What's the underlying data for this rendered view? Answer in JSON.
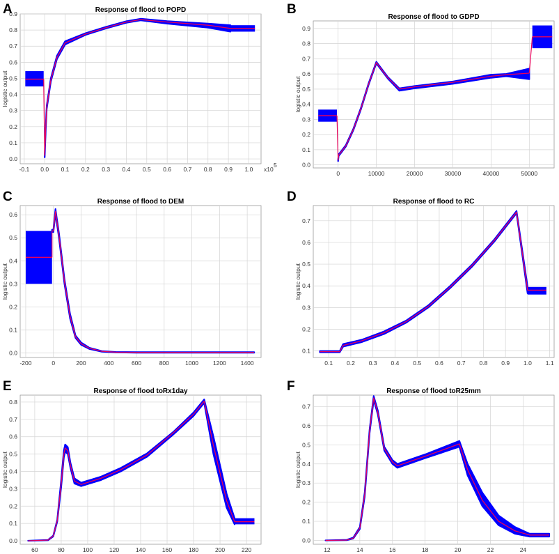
{
  "figure": {
    "colors": {
      "band": "#0000ff",
      "median": "#e8005a",
      "grid": "#d4d4d4",
      "frame": "#9a9a9a"
    }
  },
  "chart_data": [
    {
      "panel": "A",
      "type": "line",
      "title": "Response of flood to POPD",
      "ylabel": "logistic output",
      "xlabel": "",
      "x_multiplier_label": "x10",
      "x_multiplier_exp": "5",
      "xlim": [
        -0.12,
        1.06
      ],
      "ylim": [
        -0.03,
        0.9
      ],
      "xticks": [
        -0.1,
        0,
        0.1,
        0.2,
        0.3,
        0.4,
        0.5,
        0.6,
        0.7,
        0.8,
        0.9,
        1.0
      ],
      "xtick_labels": [
        "-0.1",
        "0.0",
        "0.1",
        "0.2",
        "0.3",
        "0.4",
        "0.5",
        "0.6",
        "0.7",
        "0.8",
        "0.9",
        "1.0"
      ],
      "yticks": [
        0,
        0.1,
        0.2,
        0.3,
        0.4,
        0.5,
        0.6,
        0.7,
        0.8,
        0.9
      ],
      "ytick_labels": [
        "0.0",
        "0.1",
        "0.2",
        "0.3",
        "0.4",
        "0.5",
        "0.6",
        "0.7",
        "0.8",
        "0.9"
      ],
      "categorical_box": {
        "x_range": [
          -0.095,
          -0.005
        ],
        "mean": 0.495,
        "low": 0.45,
        "high": 0.545
      },
      "right_box": {
        "x_range": [
          0.91,
          1.03
        ],
        "mean": 0.81,
        "low": 0.79,
        "high": 0.83
      },
      "series": [
        {
          "name": "upper",
          "x": [
            0.0,
            0.005,
            0.01,
            0.03,
            0.06,
            0.1,
            0.2,
            0.3,
            0.4,
            0.47,
            0.6,
            0.8,
            0.91
          ],
          "values": [
            0.03,
            0.2,
            0.33,
            0.5,
            0.64,
            0.73,
            0.78,
            0.82,
            0.855,
            0.87,
            0.855,
            0.84,
            0.83
          ]
        },
        {
          "name": "mean",
          "x": [
            0.0,
            0.005,
            0.01,
            0.03,
            0.06,
            0.1,
            0.2,
            0.3,
            0.4,
            0.47,
            0.6,
            0.8,
            0.91
          ],
          "values": [
            0.02,
            0.19,
            0.32,
            0.49,
            0.63,
            0.72,
            0.775,
            0.815,
            0.85,
            0.865,
            0.85,
            0.83,
            0.81
          ]
        },
        {
          "name": "lower",
          "x": [
            0.0,
            0.005,
            0.01,
            0.03,
            0.06,
            0.1,
            0.2,
            0.3,
            0.4,
            0.47,
            0.6,
            0.8,
            0.91
          ],
          "values": [
            0.01,
            0.18,
            0.31,
            0.48,
            0.62,
            0.71,
            0.77,
            0.81,
            0.845,
            0.86,
            0.84,
            0.815,
            0.79
          ]
        }
      ]
    },
    {
      "panel": "B",
      "type": "line",
      "title": "Response of flood to GDPD",
      "ylabel": "logistic output",
      "xlabel": "",
      "xlim": [
        -6500,
        56500
      ],
      "ylim": [
        -0.02,
        0.95
      ],
      "xticks": [
        0,
        10000,
        20000,
        30000,
        40000,
        50000
      ],
      "xtick_labels": [
        "0",
        "10000",
        "20000",
        "30000",
        "40000",
        "50000"
      ],
      "yticks": [
        0,
        0.1,
        0.2,
        0.3,
        0.4,
        0.5,
        0.6,
        0.7,
        0.8,
        0.9
      ],
      "ytick_labels": [
        "0.0",
        "0.1",
        "0.2",
        "0.3",
        "0.4",
        "0.5",
        "0.6",
        "0.7",
        "0.8",
        "0.9"
      ],
      "categorical_box": {
        "x_range": [
          -5200,
          -300
        ],
        "mean": 0.325,
        "low": 0.285,
        "high": 0.365
      },
      "right_box": {
        "x_range": [
          50800,
          56000
        ],
        "mean": 0.845,
        "low": 0.77,
        "high": 0.92
      },
      "series": [
        {
          "name": "upper",
          "x": [
            0,
            150,
            500,
            2000,
            4000,
            6000,
            8000,
            10000,
            13000,
            16000,
            20000,
            30000,
            40000,
            44000,
            50000
          ],
          "values": [
            0.035,
            0.07,
            0.08,
            0.13,
            0.24,
            0.38,
            0.54,
            0.68,
            0.58,
            0.505,
            0.52,
            0.55,
            0.595,
            0.6,
            0.635
          ]
        },
        {
          "name": "mean",
          "x": [
            0,
            150,
            500,
            2000,
            4000,
            6000,
            8000,
            10000,
            13000,
            16000,
            20000,
            30000,
            40000,
            44000,
            50000
          ],
          "values": [
            0.03,
            0.065,
            0.075,
            0.125,
            0.235,
            0.375,
            0.535,
            0.675,
            0.575,
            0.5,
            0.515,
            0.545,
            0.585,
            0.595,
            0.605
          ]
        },
        {
          "name": "lower",
          "x": [
            0,
            150,
            500,
            2000,
            4000,
            6000,
            8000,
            10000,
            13000,
            16000,
            20000,
            30000,
            40000,
            44000,
            50000
          ],
          "values": [
            0.025,
            0.06,
            0.07,
            0.12,
            0.23,
            0.37,
            0.53,
            0.67,
            0.57,
            0.49,
            0.505,
            0.535,
            0.575,
            0.585,
            0.565
          ]
        }
      ]
    },
    {
      "panel": "C",
      "type": "line",
      "title": "Response of flood to DEM",
      "ylabel": "logistic output",
      "xlabel": "",
      "xlim": [
        -240,
        1500
      ],
      "ylim": [
        -0.02,
        0.64
      ],
      "xticks": [
        -200,
        0,
        200,
        400,
        600,
        800,
        1000,
        1200,
        1400
      ],
      "xtick_labels": [
        "-200",
        "0",
        "200",
        "400",
        "600",
        "800",
        "1000",
        "1200",
        "1400"
      ],
      "yticks": [
        0,
        0.1,
        0.2,
        0.3,
        0.4,
        0.5,
        0.6
      ],
      "ytick_labels": [
        "0.0",
        "0.1",
        "0.2",
        "0.3",
        "0.4",
        "0.5",
        "0.6"
      ],
      "categorical_box": {
        "x_range": [
          -200,
          -10
        ],
        "mean": 0.415,
        "low": 0.3,
        "high": 0.53
      },
      "series": [
        {
          "name": "upper",
          "x": [
            -10,
            0,
            15,
            40,
            80,
            120,
            160,
            200,
            260,
            350,
            450,
            600,
            1000,
            1450
          ],
          "values": [
            0.535,
            0.535,
            0.625,
            0.52,
            0.32,
            0.17,
            0.075,
            0.045,
            0.022,
            0.008,
            0.004,
            0.003,
            0.003,
            0.003
          ]
        },
        {
          "name": "mean",
          "x": [
            -10,
            0,
            15,
            40,
            80,
            120,
            160,
            200,
            260,
            350,
            450,
            600,
            1000,
            1450
          ],
          "values": [
            0.53,
            0.53,
            0.615,
            0.51,
            0.31,
            0.16,
            0.07,
            0.04,
            0.02,
            0.007,
            0.003,
            0.002,
            0.002,
            0.002
          ]
        },
        {
          "name": "lower",
          "x": [
            -10,
            0,
            15,
            40,
            80,
            120,
            160,
            200,
            260,
            350,
            450,
            600,
            1000,
            1450
          ],
          "values": [
            0.525,
            0.525,
            0.605,
            0.5,
            0.3,
            0.15,
            0.065,
            0.035,
            0.017,
            0.005,
            0.002,
            0.001,
            0.001,
            0.001
          ]
        }
      ]
    },
    {
      "panel": "D",
      "type": "line",
      "title": "Response of flood to RC",
      "ylabel": "logistic output",
      "xlabel": "",
      "xlim": [
        0.03,
        1.12
      ],
      "ylim": [
        0.07,
        0.77
      ],
      "xticks": [
        0.1,
        0.2,
        0.3,
        0.4,
        0.5,
        0.6,
        0.7,
        0.8,
        0.9,
        1.0,
        1.1
      ],
      "xtick_labels": [
        "0.1",
        "0.2",
        "0.3",
        "0.4",
        "0.5",
        "0.6",
        "0.7",
        "0.8",
        "0.9",
        "1.0",
        "1.1"
      ],
      "yticks": [
        0.1,
        0.2,
        0.3,
        0.4,
        0.5,
        0.6,
        0.7
      ],
      "ytick_labels": [
        "0.1",
        "0.2",
        "0.3",
        "0.4",
        "0.5",
        "0.6",
        "0.7"
      ],
      "right_box": {
        "x_range": [
          1.0,
          1.085
        ],
        "mean": 0.38,
        "low": 0.36,
        "high": 0.395
      },
      "series": [
        {
          "name": "upper",
          "x": [
            0.06,
            0.15,
            0.165,
            0.25,
            0.35,
            0.45,
            0.55,
            0.65,
            0.75,
            0.85,
            0.95,
            1.0
          ],
          "values": [
            0.1,
            0.1,
            0.132,
            0.152,
            0.19,
            0.24,
            0.31,
            0.4,
            0.5,
            0.615,
            0.745,
            0.395
          ]
        },
        {
          "name": "mean",
          "x": [
            0.06,
            0.15,
            0.165,
            0.25,
            0.35,
            0.45,
            0.55,
            0.65,
            0.75,
            0.85,
            0.95,
            1.0
          ],
          "values": [
            0.097,
            0.097,
            0.126,
            0.147,
            0.184,
            0.235,
            0.305,
            0.395,
            0.495,
            0.61,
            0.74,
            0.38
          ]
        },
        {
          "name": "lower",
          "x": [
            0.06,
            0.15,
            0.165,
            0.25,
            0.35,
            0.45,
            0.55,
            0.65,
            0.75,
            0.85,
            0.95,
            1.0
          ],
          "values": [
            0.094,
            0.094,
            0.12,
            0.141,
            0.178,
            0.23,
            0.3,
            0.39,
            0.49,
            0.605,
            0.735,
            0.365
          ]
        }
      ]
    },
    {
      "panel": "E",
      "type": "line",
      "title": "Response of flood toRx1day",
      "ylabel": "logistic output",
      "xlabel": "",
      "xlim": [
        49,
        231
      ],
      "ylim": [
        -0.02,
        0.84
      ],
      "xticks": [
        60,
        80,
        100,
        120,
        140,
        160,
        180,
        200,
        220
      ],
      "xtick_labels": [
        "60",
        "80",
        "100",
        "120",
        "140",
        "160",
        "180",
        "200",
        "220"
      ],
      "yticks": [
        0,
        0.1,
        0.2,
        0.3,
        0.4,
        0.5,
        0.6,
        0.7,
        0.8
      ],
      "ytick_labels": [
        "0.0",
        "0.1",
        "0.2",
        "0.3",
        "0.4",
        "0.5",
        "0.6",
        "0.7",
        "0.8"
      ],
      "right_box": {
        "x_range": [
          211,
          226
        ],
        "mean": 0.11,
        "low": 0.095,
        "high": 0.13
      },
      "series": [
        {
          "name": "upper",
          "x": [
            55,
            70,
            74,
            77,
            80,
            82,
            83,
            85,
            87,
            90,
            95,
            110,
            125,
            145,
            165,
            180,
            188,
            195,
            205,
            211
          ],
          "values": [
            0.0,
            0.005,
            0.03,
            0.12,
            0.35,
            0.52,
            0.555,
            0.54,
            0.45,
            0.36,
            0.335,
            0.37,
            0.42,
            0.505,
            0.63,
            0.74,
            0.815,
            0.6,
            0.27,
            0.13
          ]
        },
        {
          "name": "mean",
          "x": [
            55,
            70,
            74,
            77,
            80,
            82,
            83,
            85,
            87,
            90,
            95,
            110,
            125,
            145,
            165,
            180,
            188,
            195,
            205,
            211
          ],
          "values": [
            0.0,
            0.004,
            0.028,
            0.115,
            0.33,
            0.5,
            0.535,
            0.52,
            0.435,
            0.345,
            0.325,
            0.36,
            0.41,
            0.495,
            0.625,
            0.73,
            0.805,
            0.55,
            0.23,
            0.11
          ]
        },
        {
          "name": "lower",
          "x": [
            55,
            70,
            74,
            77,
            80,
            82,
            83,
            85,
            87,
            90,
            95,
            110,
            125,
            145,
            165,
            180,
            188,
            195,
            205,
            211
          ],
          "values": [
            0.0,
            0.003,
            0.025,
            0.11,
            0.31,
            0.48,
            0.515,
            0.5,
            0.42,
            0.33,
            0.315,
            0.35,
            0.4,
            0.485,
            0.615,
            0.72,
            0.795,
            0.5,
            0.19,
            0.095
          ]
        }
      ]
    },
    {
      "panel": "F",
      "type": "line",
      "title": "Response of flood toR25mm",
      "ylabel": "logistic output",
      "xlabel": "",
      "xlim": [
        11.15,
        25.9
      ],
      "ylim": [
        -0.02,
        0.76
      ],
      "xticks": [
        12,
        14,
        16,
        18,
        20,
        22,
        24
      ],
      "xtick_labels": [
        "12",
        "14",
        "16",
        "18",
        "20",
        "22",
        "24"
      ],
      "yticks": [
        0,
        0.1,
        0.2,
        0.3,
        0.4,
        0.5,
        0.6,
        0.7
      ],
      "ytick_labels": [
        "0.0",
        "0.1",
        "0.2",
        "0.3",
        "0.4",
        "0.5",
        "0.6",
        "0.7"
      ],
      "series": [
        {
          "name": "upper",
          "x": [
            11.9,
            13.2,
            13.6,
            14.0,
            14.3,
            14.6,
            14.85,
            15.1,
            15.5,
            16.0,
            16.3,
            18.0,
            20.1,
            20.6,
            21.5,
            22.5,
            23.5,
            24.4,
            25.6
          ],
          "values": [
            0.0,
            0.003,
            0.015,
            0.07,
            0.25,
            0.58,
            0.755,
            0.68,
            0.49,
            0.42,
            0.4,
            0.45,
            0.52,
            0.4,
            0.25,
            0.13,
            0.07,
            0.035,
            0.035
          ]
        },
        {
          "name": "mean",
          "x": [
            11.9,
            13.2,
            13.6,
            14.0,
            14.3,
            14.6,
            14.85,
            15.1,
            15.5,
            16.0,
            16.3,
            18.0,
            20.1,
            20.6,
            21.5,
            22.5,
            23.5,
            24.4,
            25.6
          ],
          "values": [
            0.0,
            0.002,
            0.012,
            0.065,
            0.24,
            0.57,
            0.745,
            0.67,
            0.48,
            0.41,
            0.39,
            0.44,
            0.505,
            0.37,
            0.21,
            0.1,
            0.05,
            0.028,
            0.028
          ]
        },
        {
          "name": "lower",
          "x": [
            11.9,
            13.2,
            13.6,
            14.0,
            14.3,
            14.6,
            14.85,
            15.1,
            15.5,
            16.0,
            16.3,
            18.0,
            20.1,
            20.6,
            21.5,
            22.5,
            23.5,
            24.4,
            25.6
          ],
          "values": [
            0.0,
            0.001,
            0.01,
            0.06,
            0.23,
            0.56,
            0.735,
            0.66,
            0.47,
            0.4,
            0.38,
            0.43,
            0.49,
            0.34,
            0.18,
            0.08,
            0.035,
            0.02,
            0.02
          ]
        }
      ]
    }
  ]
}
